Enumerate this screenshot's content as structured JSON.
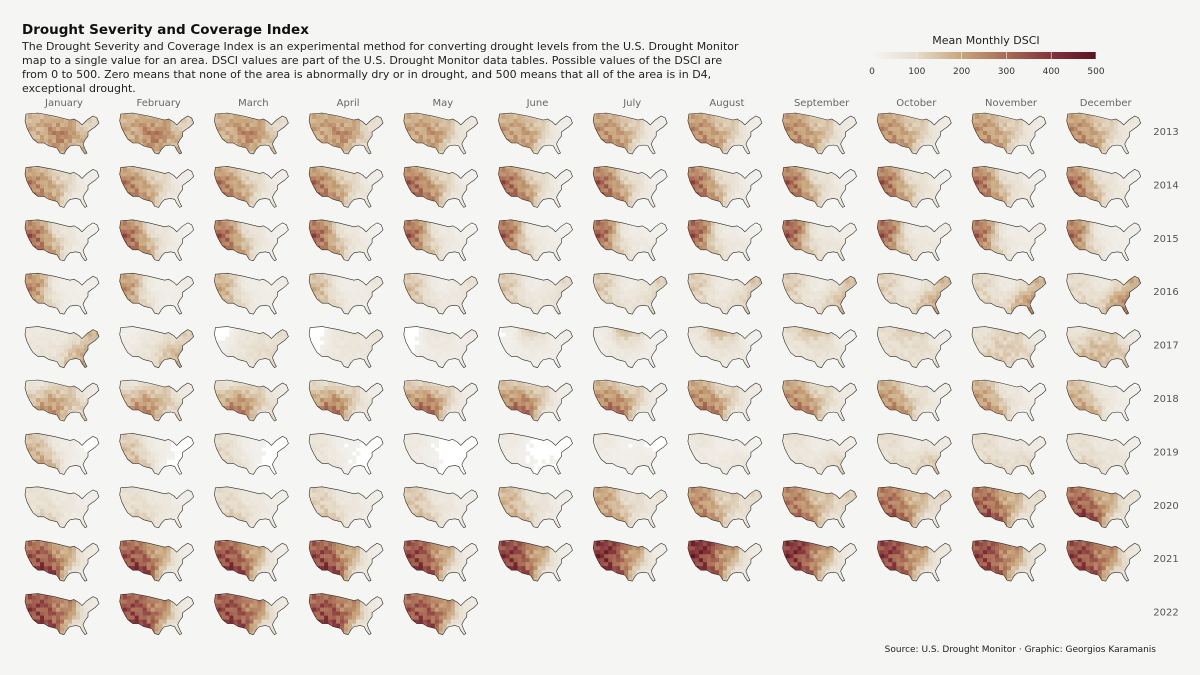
{
  "title": "Drought Severity and Coverage Index",
  "subtitle": "The Drought Severity and Coverage Index is an experimental method for converting drought levels from the U.S. Drought Monitor map to a single value for an area. DSCI values are part of the U.S. Drought Monitor data tables. Possible values of the DSCI are from 0 to 500. Zero means that none of the area is abnormally dry or in drought, and 500 means that all of the area is in D4, exceptional drought.",
  "source": "Source: U.S. Drought Monitor · Graphic: Georgios Karamanis",
  "legend": {
    "title": "Mean Monthly DSCI",
    "ticks": [
      0,
      100,
      200,
      300,
      400,
      500
    ],
    "colors": [
      "#f5f5f4",
      "#e6dccb",
      "#c8a57c",
      "#a96b55",
      "#84333b",
      "#5a1520"
    ]
  },
  "chart_data": {
    "type": "heatmap",
    "title": "Drought Severity and Coverage Index",
    "value_range": [
      0,
      500
    ],
    "months": [
      "January",
      "February",
      "March",
      "April",
      "May",
      "June",
      "July",
      "August",
      "September",
      "October",
      "November",
      "December"
    ],
    "years": [
      "2013",
      "2014",
      "2015",
      "2016",
      "2017",
      "2018",
      "2019",
      "2020",
      "2021",
      "2022"
    ],
    "pattern_keys": [
      "west",
      "southwest",
      "plains",
      "southeast",
      "northeast",
      "northwest",
      "central",
      "northern"
    ],
    "region_intensity": [
      {
        "year": "2013",
        "values": [
          [
            200,
            150,
            360,
            170,
            110,
            150,
            200,
            110
          ],
          [
            210,
            160,
            370,
            170,
            110,
            160,
            210,
            120
          ],
          [
            200,
            150,
            350,
            140,
            90,
            170,
            200,
            130
          ],
          [
            220,
            170,
            330,
            100,
            80,
            180,
            200,
            120
          ],
          [
            230,
            180,
            300,
            60,
            50,
            160,
            140,
            120
          ],
          [
            240,
            200,
            260,
            40,
            30,
            150,
            110,
            110
          ],
          [
            260,
            240,
            220,
            40,
            30,
            170,
            120,
            100
          ],
          [
            270,
            250,
            200,
            50,
            30,
            180,
            150,
            90
          ],
          [
            270,
            250,
            200,
            60,
            40,
            190,
            160,
            90
          ],
          [
            260,
            240,
            190,
            50,
            40,
            180,
            140,
            100
          ],
          [
            260,
            240,
            180,
            50,
            40,
            170,
            130,
            100
          ],
          [
            270,
            250,
            190,
            50,
            50,
            170,
            120,
            100
          ]
        ]
      },
      {
        "year": "2014",
        "values": [
          [
            310,
            230,
            190,
            40,
            30,
            140,
            100,
            80
          ],
          [
            330,
            240,
            190,
            50,
            30,
            130,
            100,
            70
          ],
          [
            340,
            240,
            180,
            50,
            30,
            130,
            90,
            70
          ],
          [
            350,
            250,
            200,
            60,
            30,
            140,
            100,
            60
          ],
          [
            370,
            280,
            230,
            50,
            20,
            160,
            100,
            60
          ],
          [
            380,
            280,
            200,
            40,
            20,
            170,
            90,
            60
          ],
          [
            380,
            270,
            170,
            40,
            20,
            180,
            80,
            50
          ],
          [
            380,
            260,
            150,
            40,
            20,
            180,
            70,
            50
          ],
          [
            380,
            250,
            140,
            50,
            20,
            180,
            70,
            50
          ],
          [
            380,
            240,
            140,
            60,
            20,
            180,
            70,
            50
          ],
          [
            370,
            240,
            130,
            60,
            20,
            170,
            60,
            50
          ],
          [
            370,
            240,
            120,
            50,
            20,
            160,
            60,
            50
          ]
        ]
      },
      {
        "year": "2015",
        "values": [
          [
            380,
            260,
            120,
            40,
            20,
            170,
            60,
            40
          ],
          [
            380,
            260,
            130,
            40,
            20,
            180,
            60,
            40
          ],
          [
            380,
            250,
            130,
            40,
            20,
            190,
            60,
            40
          ],
          [
            390,
            230,
            120,
            50,
            20,
            200,
            50,
            40
          ],
          [
            380,
            190,
            80,
            40,
            20,
            210,
            40,
            40
          ],
          [
            380,
            180,
            60,
            40,
            20,
            220,
            30,
            30
          ],
          [
            380,
            170,
            50,
            50,
            20,
            240,
            30,
            30
          ],
          [
            380,
            170,
            50,
            60,
            20,
            260,
            30,
            40
          ],
          [
            380,
            180,
            50,
            70,
            30,
            270,
            40,
            50
          ],
          [
            370,
            170,
            50,
            60,
            40,
            250,
            40,
            40
          ],
          [
            360,
            160,
            40,
            40,
            40,
            220,
            30,
            40
          ],
          [
            350,
            150,
            40,
            30,
            30,
            200,
            30,
            30
          ]
        ]
      },
      {
        "year": "2016",
        "values": [
          [
            300,
            140,
            30,
            30,
            30,
            180,
            30,
            30
          ],
          [
            280,
            140,
            30,
            30,
            40,
            160,
            30,
            30
          ],
          [
            230,
            140,
            40,
            30,
            40,
            130,
            30,
            30
          ],
          [
            210,
            130,
            30,
            40,
            60,
            110,
            30,
            30
          ],
          [
            190,
            120,
            30,
            60,
            80,
            100,
            30,
            30
          ],
          [
            170,
            110,
            30,
            80,
            100,
            110,
            40,
            30
          ],
          [
            160,
            110,
            30,
            100,
            120,
            120,
            40,
            40
          ],
          [
            150,
            100,
            30,
            120,
            140,
            120,
            40,
            40
          ],
          [
            150,
            100,
            30,
            160,
            150,
            120,
            40,
            40
          ],
          [
            140,
            110,
            40,
            200,
            160,
            110,
            40,
            40
          ],
          [
            130,
            120,
            40,
            240,
            170,
            100,
            40,
            40
          ],
          [
            110,
            120,
            60,
            260,
            180,
            90,
            50,
            40
          ]
        ]
      },
      {
        "year": "2017",
        "values": [
          [
            70,
            80,
            60,
            200,
            160,
            40,
            60,
            40
          ],
          [
            40,
            70,
            70,
            180,
            120,
            20,
            80,
            50
          ],
          [
            20,
            60,
            80,
            100,
            90,
            10,
            80,
            60
          ],
          [
            10,
            50,
            60,
            60,
            70,
            10,
            60,
            70
          ],
          [
            10,
            40,
            40,
            40,
            40,
            10,
            40,
            90
          ],
          [
            20,
            40,
            30,
            30,
            30,
            20,
            40,
            180
          ],
          [
            30,
            50,
            40,
            30,
            20,
            40,
            60,
            230
          ],
          [
            40,
            60,
            50,
            50,
            20,
            80,
            80,
            240
          ],
          [
            60,
            70,
            60,
            60,
            20,
            120,
            90,
            200
          ],
          [
            80,
            100,
            60,
            80,
            30,
            100,
            100,
            160
          ],
          [
            100,
            140,
            120,
            110,
            40,
            60,
            120,
            120
          ],
          [
            120,
            180,
            160,
            140,
            40,
            40,
            130,
            100
          ]
        ]
      },
      {
        "year": "2018",
        "values": [
          [
            150,
            260,
            200,
            120,
            40,
            30,
            140,
            90
          ],
          [
            170,
            280,
            210,
            110,
            40,
            30,
            140,
            80
          ],
          [
            180,
            300,
            220,
            90,
            40,
            40,
            130,
            70
          ],
          [
            200,
            320,
            240,
            60,
            30,
            60,
            120,
            60
          ],
          [
            230,
            330,
            260,
            40,
            30,
            80,
            120,
            60
          ],
          [
            240,
            330,
            250,
            40,
            30,
            110,
            130,
            60
          ],
          [
            250,
            320,
            230,
            40,
            30,
            140,
            140,
            50
          ],
          [
            260,
            310,
            200,
            40,
            40,
            170,
            130,
            50
          ],
          [
            260,
            300,
            180,
            50,
            40,
            170,
            120,
            50
          ],
          [
            240,
            280,
            120,
            50,
            30,
            160,
            90,
            50
          ],
          [
            230,
            260,
            80,
            40,
            20,
            150,
            60,
            40
          ],
          [
            200,
            240,
            60,
            30,
            20,
            130,
            50,
            40
          ]
        ]
      },
      {
        "year": "2019",
        "values": [
          [
            190,
            230,
            40,
            20,
            10,
            120,
            40,
            30
          ],
          [
            170,
            180,
            30,
            10,
            10,
            100,
            30,
            30
          ],
          [
            120,
            110,
            20,
            10,
            10,
            80,
            20,
            20
          ],
          [
            80,
            70,
            20,
            10,
            10,
            60,
            20,
            20
          ],
          [
            50,
            40,
            10,
            10,
            10,
            50,
            10,
            20
          ],
          [
            40,
            30,
            10,
            20,
            10,
            50,
            10,
            20
          ],
          [
            40,
            40,
            20,
            40,
            10,
            60,
            20,
            20
          ],
          [
            40,
            60,
            30,
            70,
            20,
            80,
            30,
            30
          ],
          [
            50,
            80,
            40,
            120,
            30,
            100,
            40,
            30
          ],
          [
            70,
            120,
            50,
            150,
            40,
            110,
            50,
            40
          ],
          [
            80,
            130,
            60,
            110,
            40,
            110,
            60,
            40
          ],
          [
            70,
            140,
            60,
            70,
            30,
            100,
            60,
            40
          ]
        ]
      },
      {
        "year": "2020",
        "values": [
          [
            70,
            140,
            60,
            40,
            30,
            90,
            60,
            40
          ],
          [
            80,
            140,
            70,
            40,
            30,
            90,
            60,
            40
          ],
          [
            100,
            150,
            70,
            40,
            30,
            100,
            60,
            40
          ],
          [
            130,
            160,
            60,
            40,
            30,
            110,
            60,
            40
          ],
          [
            150,
            170,
            60,
            40,
            30,
            130,
            60,
            40
          ],
          [
            180,
            190,
            70,
            40,
            30,
            160,
            80,
            50
          ],
          [
            220,
            230,
            90,
            50,
            60,
            190,
            110,
            70
          ],
          [
            260,
            280,
            120,
            60,
            100,
            220,
            140,
            100
          ],
          [
            290,
            320,
            150,
            60,
            120,
            240,
            160,
            120
          ],
          [
            320,
            360,
            180,
            50,
            110,
            250,
            180,
            140
          ],
          [
            340,
            390,
            200,
            50,
            90,
            260,
            190,
            150
          ],
          [
            350,
            420,
            220,
            50,
            70,
            260,
            200,
            150
          ]
        ]
      },
      {
        "year": "2021",
        "values": [
          [
            360,
            440,
            240,
            40,
            40,
            260,
            200,
            160
          ],
          [
            370,
            440,
            240,
            40,
            30,
            270,
            200,
            170
          ],
          [
            380,
            440,
            230,
            40,
            30,
            280,
            190,
            190
          ],
          [
            390,
            440,
            210,
            40,
            30,
            290,
            180,
            210
          ],
          [
            400,
            430,
            190,
            40,
            30,
            310,
            180,
            230
          ],
          [
            420,
            430,
            180,
            40,
            30,
            340,
            190,
            260
          ],
          [
            440,
            420,
            160,
            40,
            30,
            380,
            200,
            310
          ],
          [
            440,
            410,
            150,
            40,
            40,
            400,
            210,
            330
          ],
          [
            430,
            400,
            150,
            40,
            40,
            390,
            210,
            320
          ],
          [
            410,
            380,
            160,
            40,
            50,
            350,
            220,
            290
          ],
          [
            400,
            380,
            200,
            60,
            60,
            330,
            240,
            270
          ],
          [
            400,
            390,
            250,
            70,
            50,
            320,
            260,
            260
          ]
        ]
      },
      {
        "year": "2022",
        "values": [
          [
            390,
            400,
            270,
            60,
            40,
            310,
            270,
            240
          ],
          [
            380,
            400,
            280,
            60,
            40,
            300,
            270,
            230
          ],
          [
            380,
            400,
            290,
            60,
            40,
            300,
            270,
            230
          ],
          [
            370,
            400,
            310,
            50,
            40,
            290,
            270,
            210
          ],
          [
            360,
            400,
            300,
            40,
            40,
            270,
            250,
            200
          ]
        ]
      }
    ]
  }
}
